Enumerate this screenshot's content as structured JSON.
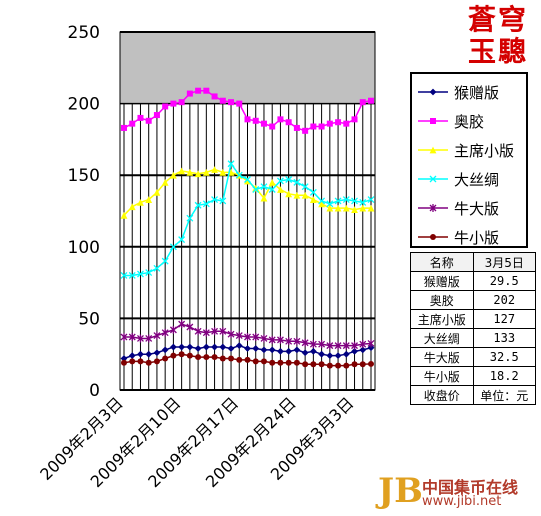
{
  "chart_data": {
    "type": "line",
    "x": [
      "2009年2月3日",
      "2009年2月4日",
      "2009年2月5日",
      "2009年2月6日",
      "2009年2月7日",
      "2009年2月8日",
      "2009年2月9日",
      "2009年2月10日",
      "2009年2月11日",
      "2009年2月12日",
      "2009年2月13日",
      "2009年2月14日",
      "2009年2月15日",
      "2009年2月16日",
      "2009年2月17日",
      "2009年2月18日",
      "2009年2月19日",
      "2009年2月20日",
      "2009年2月21日",
      "2009年2月22日",
      "2009年2月23日",
      "2009年2月24日",
      "2009年2月25日",
      "2009年2月26日",
      "2009年2月27日",
      "2009年2月28日",
      "2009年3月1日",
      "2009年3月2日",
      "2009年3月3日",
      "2009年3月4日",
      "2009年3月5日"
    ],
    "tick_labels": [
      "2009年2月3日",
      "2009年2月10日",
      "2009年2月17日",
      "2009年2月24日",
      "2009年3月3日"
    ],
    "tick_index": [
      0,
      7,
      14,
      21,
      28
    ],
    "ylim": [
      0,
      250
    ],
    "yticks": [
      0,
      50,
      100,
      150,
      200,
      250
    ],
    "grid": true,
    "legend_position": "right",
    "series": [
      {
        "name": "猴赠版",
        "color": "#000080",
        "marker": "diamond",
        "values": [
          22,
          24,
          25,
          25,
          26,
          28,
          30,
          30,
          30,
          29,
          30,
          30,
          30,
          29,
          31,
          29,
          29,
          28,
          28,
          27,
          27,
          28,
          26,
          27,
          25,
          24,
          24,
          25,
          27,
          28,
          29.5
        ]
      },
      {
        "name": "奥胶",
        "color": "#ff00ff",
        "marker": "square",
        "values": [
          183,
          186,
          190,
          188,
          192,
          198,
          200,
          201,
          207,
          209,
          209,
          205,
          202,
          201,
          200,
          189,
          188,
          186,
          184,
          189,
          187,
          183,
          181,
          184,
          184,
          186,
          187,
          186,
          189,
          201,
          202
        ]
      },
      {
        "name": "主席小版",
        "color": "#ffff00",
        "marker": "triangle",
        "values": [
          122,
          128,
          131,
          133,
          138,
          145,
          150,
          153,
          152,
          151,
          152,
          154,
          152,
          152,
          150,
          146,
          141,
          134,
          145,
          140,
          137,
          136,
          136,
          133,
          130,
          127,
          127,
          127,
          126,
          127,
          127
        ]
      },
      {
        "name": "大丝绸",
        "color": "#00ffff",
        "marker": "x",
        "values": [
          80,
          80,
          81,
          82,
          85,
          90,
          100,
          105,
          120,
          129,
          130,
          133,
          132,
          158,
          150,
          147,
          140,
          142,
          140,
          146,
          147,
          145,
          142,
          138,
          132,
          130,
          132,
          133,
          132,
          131,
          133
        ]
      },
      {
        "name": "牛大版",
        "color": "#800080",
        "marker": "star",
        "values": [
          37,
          37,
          36,
          36,
          38,
          40,
          42,
          46,
          44,
          41,
          40,
          41,
          41,
          39,
          38,
          37,
          37,
          36,
          35,
          35,
          34,
          34,
          33,
          32,
          32,
          31,
          31,
          31,
          31,
          32,
          32.5
        ]
      },
      {
        "name": "牛小版",
        "color": "#800000",
        "marker": "circle",
        "values": [
          19,
          20,
          20,
          19,
          20,
          22,
          24,
          25,
          24,
          23,
          23,
          23,
          22,
          22,
          21,
          21,
          20,
          20,
          19,
          19,
          19,
          19,
          18,
          18,
          18,
          17,
          17,
          17,
          18,
          18,
          18.2
        ]
      }
    ]
  },
  "brand": {
    "line1": "蒼穹",
    "line2": "玉驄"
  },
  "table": {
    "header": {
      "name": "名称",
      "date": "3月5日"
    },
    "rows": [
      {
        "name": "猴赠版",
        "value": "29.5"
      },
      {
        "name": "奥胶",
        "value": "202"
      },
      {
        "name": "主席小版",
        "value": "127"
      },
      {
        "name": "大丝绸",
        "value": "133"
      },
      {
        "name": "牛大版",
        "value": "32.5"
      },
      {
        "name": "牛小版",
        "value": "18.2"
      }
    ],
    "footer": {
      "label": "收盘价",
      "unit": "单位：元"
    }
  },
  "watermark": {
    "logo": "JB",
    "name": "中国集币在线",
    "url": "www.jibi.net"
  }
}
